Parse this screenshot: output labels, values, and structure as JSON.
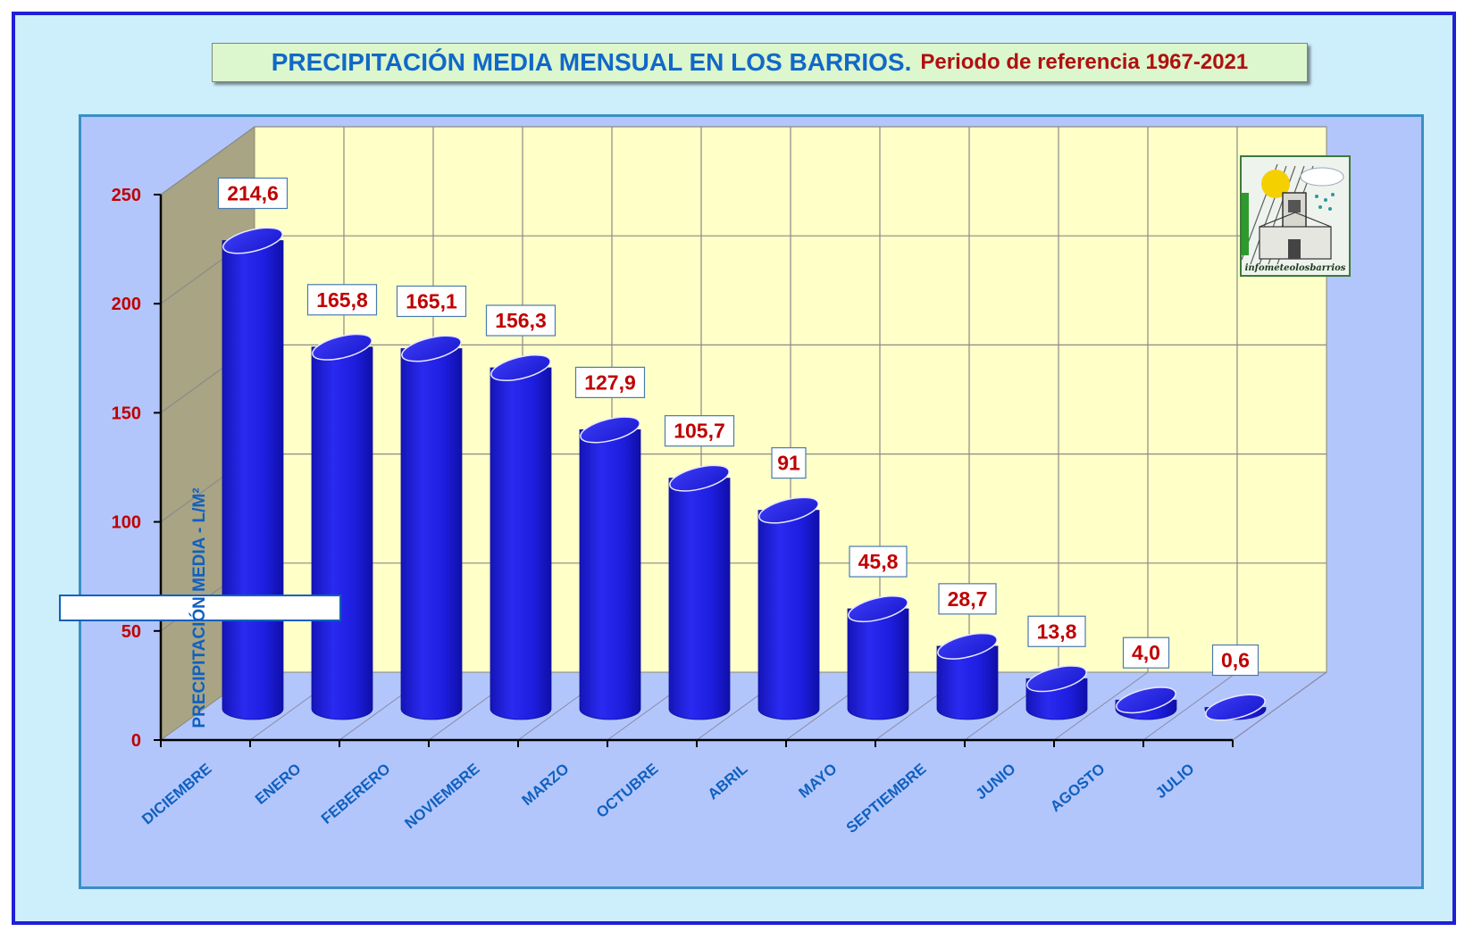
{
  "title": {
    "main": "PRECIPITACIÓN MEDIA MENSUAL EN LOS BARRIOS.",
    "sub": "Periodo de referencia 1967-2021"
  },
  "logo": {
    "text": "infometeolosbarrios",
    "icon": "church-sun-rain-logo"
  },
  "colors": {
    "background": "#cdeefb",
    "frame": "#1f1fd8",
    "plot_area": "#b3c6fb",
    "back_wall": "#ffffc8",
    "side_wall": "#a8a484",
    "bars": "#2020e0",
    "value_labels": "#c00000",
    "axis_labels": "#1060c0",
    "tick_labels": "#c00000"
  },
  "chart_data": {
    "type": "bar",
    "style": "3d-cylinder",
    "categories": [
      "DICIEMBRE",
      "ENERO",
      "FEBERERO",
      "NOVIEMBRE",
      "MARZO",
      "OCTUBRE",
      "ABRIL",
      "MAYO",
      "SEPTIEMBRE",
      "JUNIO",
      "AGOSTO",
      "JULIO"
    ],
    "values": [
      214.6,
      165.8,
      165.1,
      156.3,
      127.9,
      105.7,
      91,
      45.8,
      28.7,
      13.8,
      4.0,
      0.6
    ],
    "value_labels": [
      "214,6",
      "165,8",
      "165,1",
      "156,3",
      "127,9",
      "105,7",
      "91",
      "45,8",
      "28,7",
      "13,8",
      "4,0",
      "0,6"
    ],
    "ylabel": "PRECIPITACIÓN MEDIA - L/M²",
    "xlabel": "",
    "ylim": [
      0,
      250
    ],
    "yticks": [
      0,
      50,
      100,
      150,
      200,
      250
    ],
    "grid": true,
    "legend": "none"
  }
}
